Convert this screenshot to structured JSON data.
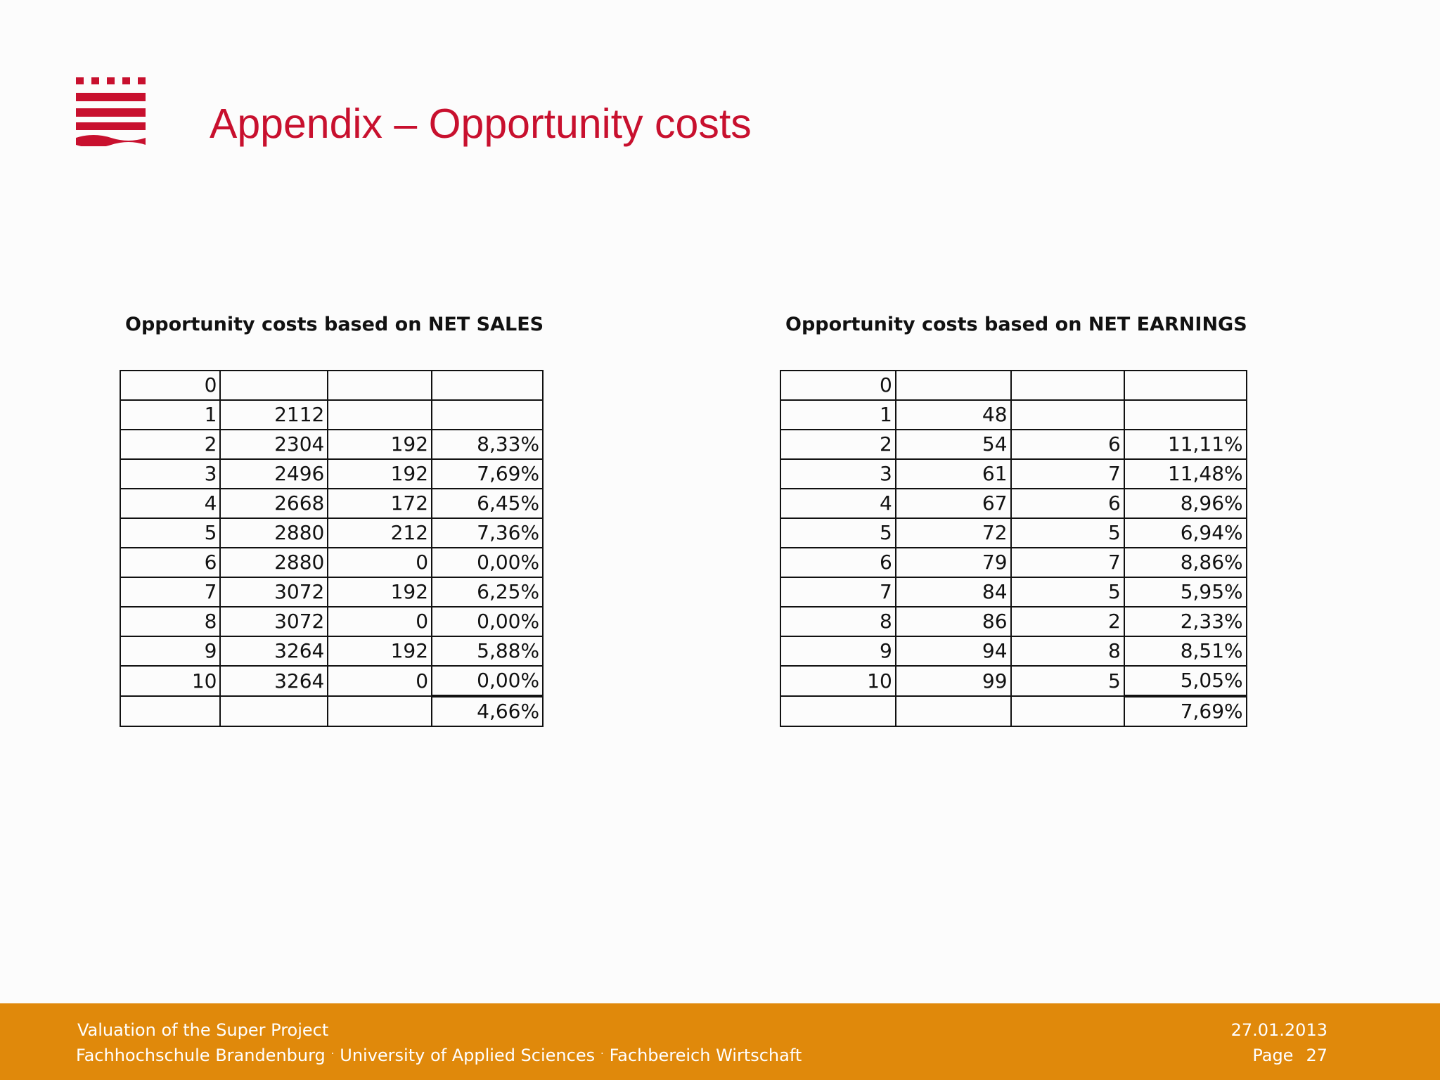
{
  "header": {
    "title": "Appendix – Opportunity costs"
  },
  "colors": {
    "brand_red": "#c8102e",
    "footer_orange": "#e0890b"
  },
  "tables": {
    "net_sales": {
      "heading": "Opportunity costs based on NET SALES",
      "rows": [
        [
          "0",
          "",
          "",
          ""
        ],
        [
          "1",
          "2112",
          "",
          ""
        ],
        [
          "2",
          "2304",
          "192",
          "8,33%"
        ],
        [
          "3",
          "2496",
          "192",
          "7,69%"
        ],
        [
          "4",
          "2668",
          "172",
          "6,45%"
        ],
        [
          "5",
          "2880",
          "212",
          "7,36%"
        ],
        [
          "6",
          "2880",
          "0",
          "0,00%"
        ],
        [
          "7",
          "3072",
          "192",
          "6,25%"
        ],
        [
          "8",
          "3072",
          "0",
          "0,00%"
        ],
        [
          "9",
          "3264",
          "192",
          "5,88%"
        ],
        [
          "10",
          "3264",
          "0",
          "0,00%"
        ],
        [
          "",
          "",
          "",
          "4,66%"
        ]
      ]
    },
    "net_earnings": {
      "heading": "Opportunity costs based on NET EARNINGS",
      "rows": [
        [
          "0",
          "",
          "",
          ""
        ],
        [
          "1",
          "48",
          "",
          ""
        ],
        [
          "2",
          "54",
          "6",
          "11,11%"
        ],
        [
          "3",
          "61",
          "7",
          "11,48%"
        ],
        [
          "4",
          "67",
          "6",
          "8,96%"
        ],
        [
          "5",
          "72",
          "5",
          "6,94%"
        ],
        [
          "6",
          "79",
          "7",
          "8,86%"
        ],
        [
          "7",
          "84",
          "5",
          "5,95%"
        ],
        [
          "8",
          "86",
          "2",
          "2,33%"
        ],
        [
          "9",
          "94",
          "8",
          "8,51%"
        ],
        [
          "10",
          "99",
          "5",
          "5,05%"
        ],
        [
          "",
          "",
          "",
          "7,69%"
        ]
      ]
    }
  },
  "footer": {
    "presentation_title": "Valuation of the Super Project",
    "institution": "Fachhochschule Brandenburg",
    "university": "University of Applied Sciences",
    "department": "Fachbereich Wirtschaft",
    "separator": "·",
    "date": "27.01.2013",
    "page_label": "Page",
    "page_number": "27"
  }
}
